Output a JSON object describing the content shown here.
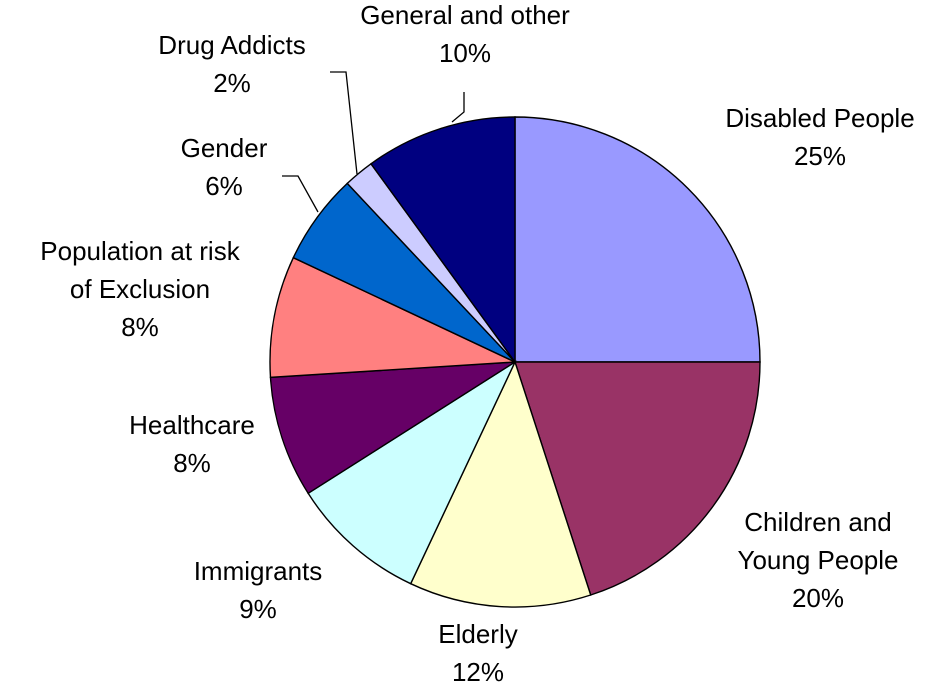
{
  "chart_data": {
    "type": "pie",
    "title": "",
    "start_angle_deg": 0,
    "direction": "clockwise",
    "slices": [
      {
        "label_lines": [
          "Disabled People"
        ],
        "value": 25,
        "value_label": "25%",
        "color": "#9999ff"
      },
      {
        "label_lines": [
          "Children and",
          "Young People"
        ],
        "value": 20,
        "value_label": "20%",
        "color": "#993366"
      },
      {
        "label_lines": [
          "Elderly"
        ],
        "value": 12,
        "value_label": "12%",
        "color": "#ffffcc"
      },
      {
        "label_lines": [
          "Immigrants"
        ],
        "value": 9,
        "value_label": "9%",
        "color": "#ccffff"
      },
      {
        "label_lines": [
          "Healthcare"
        ],
        "value": 8,
        "value_label": "8%",
        "color": "#660066"
      },
      {
        "label_lines": [
          "Population at risk",
          "of Exclusion"
        ],
        "value": 8,
        "value_label": "8%",
        "color": "#ff8080"
      },
      {
        "label_lines": [
          "Gender"
        ],
        "value": 6,
        "value_label": "6%",
        "color": "#0066cc"
      },
      {
        "label_lines": [
          "Drug Addicts"
        ],
        "value": 2,
        "value_label": "2%",
        "color": "#ccccff"
      },
      {
        "label_lines": [
          "General and other"
        ],
        "value": 10,
        "value_label": "10%",
        "color": "#000080"
      }
    ]
  }
}
